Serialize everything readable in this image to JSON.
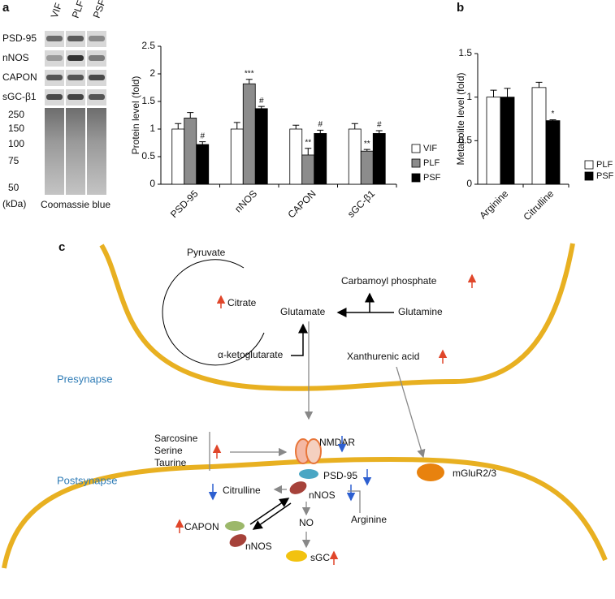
{
  "panel_labels": [
    "a",
    "b",
    "c"
  ],
  "blot": {
    "lanes": [
      "VIF",
      "PLF",
      "PSF"
    ],
    "rows": [
      "PSD-95",
      "nNOS",
      "CAPON",
      "sGC-β1"
    ],
    "markers": [
      "250",
      "150",
      "100",
      "75",
      "50"
    ],
    "unit": "(kDa)",
    "stain": "Coomassie blue"
  },
  "chart_data": [
    {
      "type": "bar",
      "ylabel": "Protein level (fold)",
      "categories": [
        "PSD-95",
        "nNOS",
        "CAPON",
        "sGC-β1"
      ],
      "series": [
        {
          "name": "VIF",
          "color": "#ffffff",
          "values": [
            1.0,
            1.0,
            1.0,
            1.0
          ],
          "errors": [
            0.1,
            0.12,
            0.07,
            0.1
          ]
        },
        {
          "name": "PLF",
          "color": "#8c8c8c",
          "values": [
            1.2,
            1.82,
            0.53,
            0.6
          ],
          "errors": [
            0.1,
            0.08,
            0.12,
            0.03
          ],
          "labels": [
            null,
            "***",
            "**",
            "**"
          ]
        },
        {
          "name": "PSF",
          "color": "#000000",
          "values": [
            0.72,
            1.37,
            0.92,
            0.92
          ],
          "errors": [
            0.05,
            0.04,
            0.06,
            0.05
          ],
          "labels": [
            "#",
            "#",
            "#",
            "#"
          ]
        }
      ],
      "ylim": [
        0,
        2.5
      ],
      "yticks": [
        0,
        0.5,
        1,
        1.5,
        2,
        2.5
      ],
      "legend": "right"
    },
    {
      "type": "bar",
      "ylabel": "Metabolite level (fold)",
      "categories": [
        "Arginine",
        "Citrulline"
      ],
      "series": [
        {
          "name": "PLF",
          "color": "#ffffff",
          "values": [
            1.0,
            1.11
          ],
          "errors": [
            0.08,
            0.06
          ]
        },
        {
          "name": "PSF",
          "color": "#000000",
          "values": [
            1.0,
            0.73
          ],
          "errors": [
            0.1,
            0.01
          ],
          "labels": [
            null,
            "*"
          ]
        }
      ],
      "ylim": [
        0,
        1.5
      ],
      "yticks": [
        0,
        0.5,
        1,
        1.5
      ],
      "legend": "right"
    }
  ],
  "diagram": {
    "presynapse": "Presynapse",
    "postsynapse": "Postsynapse",
    "pyruvate": "Pyruvate",
    "citrate": "Citrate",
    "glutamate": "Glutamate",
    "akg": "α-ketoglutarate",
    "glutamine": "Glutamine",
    "carbamoyl": "Carbamoyl phosphate",
    "xanthurenic": "Xanthurenic acid",
    "amino_acids": [
      "Sarcosine",
      "Serine",
      "Taurine"
    ],
    "nmdar": "NMDAR",
    "psd95": "PSD-95",
    "mglur": "mGluR2/3",
    "citrulline": "Citrulline",
    "nnos": "nNOS",
    "no": "NO",
    "arginine": "Arginine",
    "capon": "CAPON",
    "nnos2": "nNOS",
    "sgc": "sGC"
  }
}
